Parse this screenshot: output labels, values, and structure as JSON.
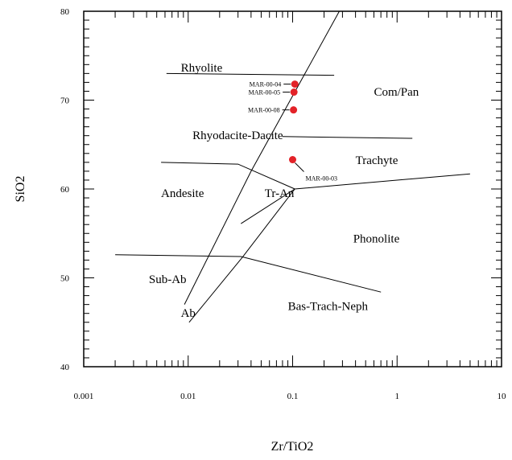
{
  "chart_data": {
    "type": "scatter",
    "title": "",
    "xlabel": "Zr/TiO2",
    "ylabel": "SiO2",
    "x_scale": "log",
    "xlim": [
      0.001,
      10
    ],
    "ylim": [
      40,
      80
    ],
    "x_tick_labels": [
      "0.001",
      "0.01",
      "0.1",
      "1",
      "10"
    ],
    "y_tick_labels": [
      "40",
      "50",
      "60",
      "70",
      "80"
    ],
    "grid": false,
    "points": [
      {
        "label": "MAR-00-04",
        "x": 0.105,
        "y": 71.8
      },
      {
        "label": "MAR-00-05",
        "x": 0.103,
        "y": 70.9
      },
      {
        "label": "MAR-00-08",
        "x": 0.102,
        "y": 68.9
      },
      {
        "label": "MAR-00-03",
        "x": 0.1,
        "y": 63.3
      }
    ],
    "point_color": "#e32228",
    "field_labels": [
      {
        "text": "Rhyolite",
        "x": 0.0085,
        "y": 73.2
      },
      {
        "text": "Com/Pan",
        "x": 0.6,
        "y": 70.5
      },
      {
        "text": "Rhyodacite-Dacite",
        "x": 0.011,
        "y": 65.6
      },
      {
        "text": "Trachyte",
        "x": 0.4,
        "y": 62.8
      },
      {
        "text": "Andesite",
        "x": 0.0055,
        "y": 59.1
      },
      {
        "text": "Tr-An",
        "x": 0.054,
        "y": 59.1
      },
      {
        "text": "Phonolite",
        "x": 0.38,
        "y": 54.0
      },
      {
        "text": "Sub-Ab",
        "x": 0.0042,
        "y": 49.4
      },
      {
        "text": "Ab",
        "x": 0.0085,
        "y": 45.6
      },
      {
        "text": "Bas-Trach-Neph",
        "x": 0.09,
        "y": 46.4
      }
    ],
    "boundaries": [
      [
        [
          0.0092,
          47.0
        ],
        [
          0.04,
          62.0
        ],
        [
          0.28,
          80.0
        ]
      ],
      [
        [
          0.0102,
          45.0
        ],
        [
          0.033,
          52.3
        ],
        [
          0.105,
          60.0
        ]
      ],
      [
        [
          0.0062,
          73.0
        ],
        [
          0.25,
          72.8
        ]
      ],
      [
        [
          0.0055,
          63.0
        ],
        [
          0.03,
          62.8
        ],
        [
          0.105,
          60.0
        ]
      ],
      [
        [
          0.032,
          56.1
        ],
        [
          0.105,
          60.0
        ],
        [
          5.0,
          61.7
        ]
      ],
      [
        [
          0.08,
          65.9
        ],
        [
          1.4,
          65.7
        ]
      ],
      [
        [
          0.002,
          52.6
        ],
        [
          0.032,
          52.4
        ],
        [
          0.7,
          48.4
        ]
      ]
    ]
  }
}
